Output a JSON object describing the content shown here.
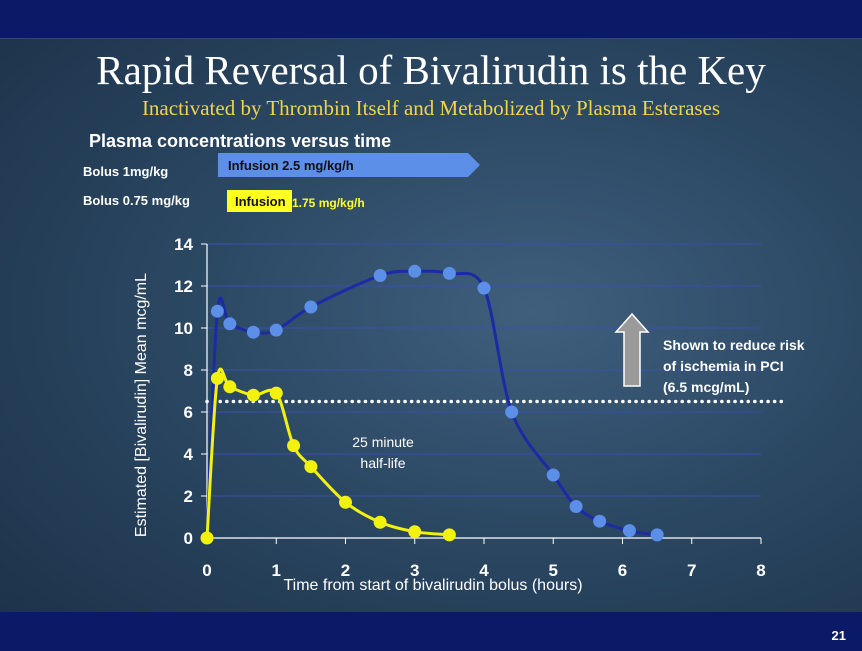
{
  "slide": {
    "title": "Rapid Reversal of Bivalirudin is the Key",
    "subtitle": "Inactivated by Thrombin Itself and Metabolized by Plasma Esterases",
    "chart_heading": "Plasma concentrations versus time",
    "number": "21"
  },
  "dosing": {
    "bolus_high": "Bolus 1mg/kg",
    "infusion_high": "Infusion 2.5 mg/kg/h",
    "bolus_low": "Bolus 0.75 mg/kg",
    "infusion_low_label": "Infusion",
    "infusion_low_rate": "1.75 mg/kg/h"
  },
  "colors": {
    "high_series": "#1c2aa6",
    "high_markers": "#5b8fe8",
    "low_series": "#f2f20e",
    "threshold": "#ffffff",
    "arrow": "#9a9a9a",
    "infusion_arrow": "#5b8fe8",
    "infusion_box": "#ffff22"
  },
  "annotations": {
    "half_life_line1": "25 minute",
    "half_life_line2": "half-life",
    "threshold_line1": "Shown to reduce risk",
    "threshold_line2": "of ischemia in PCI",
    "threshold_line3": "(6.5 mcg/mL)"
  },
  "chart_data": {
    "type": "line",
    "xlabel": "Time from start of bivalirudin bolus (hours)",
    "ylabel": "Estimated [Bivalirudin] Mean mcg/mL",
    "xlim": [
      0,
      8
    ],
    "ylim": [
      0,
      14
    ],
    "x_ticks": [
      0,
      1,
      2,
      3,
      4,
      5,
      6,
      7,
      8
    ],
    "y_ticks": [
      0,
      2,
      4,
      6,
      8,
      10,
      12,
      14
    ],
    "grid": true,
    "series": [
      {
        "points": [
          [
            0,
            0
          ],
          [
            0.15,
            10.8
          ],
          [
            0.33,
            10.2
          ],
          [
            0.67,
            9.8
          ],
          [
            1.0,
            9.9
          ],
          [
            1.5,
            11.0
          ],
          [
            2.5,
            12.5
          ],
          [
            3.0,
            12.7
          ],
          [
            3.5,
            12.6
          ],
          [
            4.0,
            11.9
          ],
          [
            4.4,
            6.0
          ],
          [
            5.0,
            3.0
          ],
          [
            5.33,
            1.5
          ],
          [
            5.67,
            0.8
          ],
          [
            6.1,
            0.35
          ],
          [
            6.5,
            0.15
          ]
        ]
      },
      {
        "points": [
          [
            0,
            0
          ],
          [
            0.15,
            7.6
          ],
          [
            0.33,
            7.2
          ],
          [
            0.67,
            6.8
          ],
          [
            1.0,
            6.9
          ],
          [
            1.25,
            4.4
          ],
          [
            1.5,
            3.4
          ],
          [
            2.0,
            1.7
          ],
          [
            2.5,
            0.75
          ],
          [
            3.0,
            0.3
          ],
          [
            3.5,
            0.15
          ]
        ]
      }
    ],
    "threshold": 6.5
  }
}
